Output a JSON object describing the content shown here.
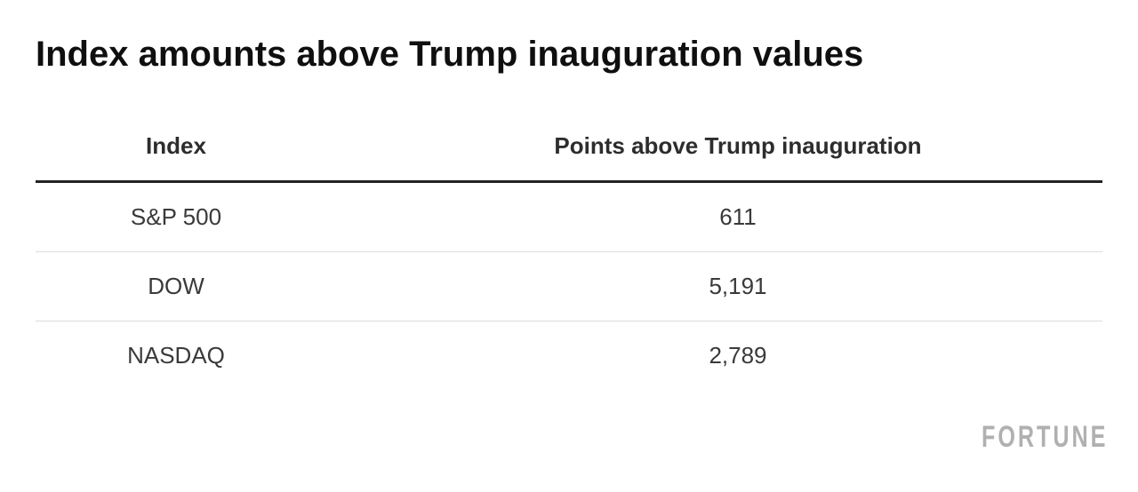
{
  "title": "Index amounts above Trump inauguration values",
  "table": {
    "columns": [
      "Index",
      "Points above Trump inauguration"
    ],
    "rows": [
      {
        "index": "S&P 500",
        "points": "611"
      },
      {
        "index": "DOW",
        "points": "5,191"
      },
      {
        "index": "NASDAQ",
        "points": "2,789"
      }
    ]
  },
  "branding": {
    "logo_text": "FORTUNE"
  },
  "colors": {
    "title_text": "#0f0f0f",
    "header_text": "#2d2d2d",
    "cell_text": "#3a3a3a",
    "header_rule": "#222222",
    "row_separator": "#dddddd",
    "logo_gray": "#b0b0b0",
    "background": "#ffffff"
  },
  "chart_data": {
    "type": "table",
    "title": "Index amounts above Trump inauguration values",
    "columns": [
      "Index",
      "Points above Trump inauguration"
    ],
    "rows": [
      [
        "S&P 500",
        "611"
      ],
      [
        "DOW",
        "5,191"
      ],
      [
        "NASDAQ",
        "2,789"
      ]
    ],
    "values": [
      611,
      5191,
      2789
    ],
    "legend_position": "none",
    "grid": "row-separators-only",
    "branding": "FORTUNE"
  }
}
